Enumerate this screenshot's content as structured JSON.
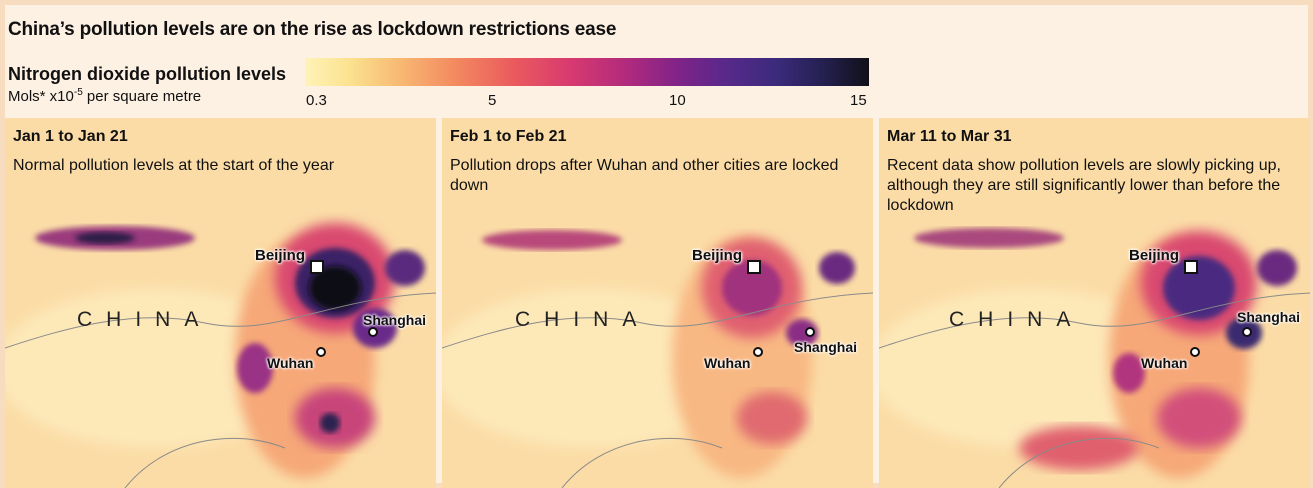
{
  "title": "China’s pollution levels are on the rise as lockdown restrictions ease",
  "legend": {
    "title": "Nitrogen dioxide pollution levels",
    "unit_prefix": "Mols* x10",
    "unit_exponent": "-5",
    "unit_suffix": " per square metre",
    "ticks": [
      "0.3",
      "5",
      "10",
      "15"
    ],
    "colors": [
      "#fff3b8",
      "#f8b872",
      "#ea5a5e",
      "#b12a7d",
      "#56298a",
      "#111018"
    ]
  },
  "panels": [
    {
      "date": "Jan 1 to Jan 21",
      "description": "Normal pollution levels at the start of the year",
      "country_label": "CHINA",
      "cities": {
        "beijing": "Beijing",
        "shanghai": "Shanghai",
        "wuhan": "Wuhan"
      }
    },
    {
      "date": "Feb 1 to Feb 21",
      "description": "Pollution drops after Wuhan and other cities are locked down",
      "country_label": "CHINA",
      "cities": {
        "beijing": "Beijing",
        "shanghai": "Shanghai",
        "wuhan": "Wuhan"
      }
    },
    {
      "date": "Mar 11 to Mar 31",
      "description": "Recent data show pollution levels are slowly picking up, although they are still significantly lower than before the lockdown",
      "country_label": "CHINA",
      "cities": {
        "beijing": "Beijing",
        "shanghai": "Shanghai",
        "wuhan": "Wuhan"
      }
    }
  ]
}
